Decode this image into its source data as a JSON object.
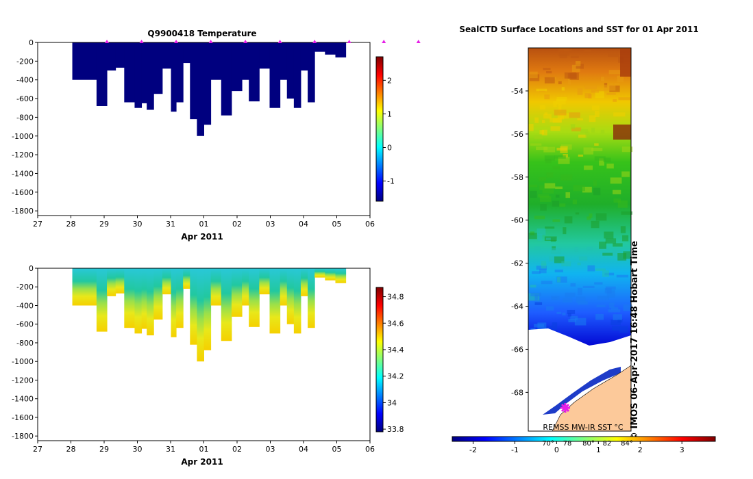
{
  "chart_data": [
    {
      "type": "heatmap",
      "title": "Q9900418  Temperature",
      "xlabel": "Apr 2011",
      "ylabel": "",
      "x_ticks": [
        "27",
        "28",
        "29",
        "30",
        "31",
        "01",
        "02",
        "03",
        "04",
        "05",
        "06"
      ],
      "y_ticks": [
        0,
        -200,
        -400,
        -600,
        -800,
        -1000,
        -1200,
        -1400,
        -1600,
        -1800
      ],
      "ylim": [
        -1850,
        0
      ],
      "colorbar": {
        "min": -1.6,
        "max": 2.7,
        "ticks": [
          2,
          1,
          0,
          -1
        ]
      },
      "profile_markers_x": [
        29,
        30,
        31,
        32,
        33,
        34,
        35,
        36,
        37,
        38
      ],
      "profiles": [
        {
          "x0": 28.0,
          "x1": 28.7,
          "depth": -400
        },
        {
          "x0": 28.7,
          "x1": 29.0,
          "depth": -680
        },
        {
          "x0": 29.0,
          "x1": 29.25,
          "depth": -300
        },
        {
          "x0": 29.25,
          "x1": 29.5,
          "depth": -270
        },
        {
          "x0": 29.5,
          "x1": 29.8,
          "depth": -640
        },
        {
          "x0": 29.8,
          "x1": 30.0,
          "depth": -700
        },
        {
          "x0": 30.0,
          "x1": 30.15,
          "depth": -650
        },
        {
          "x0": 30.15,
          "x1": 30.35,
          "depth": -720
        },
        {
          "x0": 30.35,
          "x1": 30.6,
          "depth": -550
        },
        {
          "x0": 30.6,
          "x1": 30.85,
          "depth": -280
        },
        {
          "x0": 30.85,
          "x1": 31.0,
          "depth": -740
        },
        {
          "x0": 31.0,
          "x1": 31.2,
          "depth": -640
        },
        {
          "x0": 31.2,
          "x1": 31.4,
          "depth": -220
        },
        {
          "x0": 31.4,
          "x1": 31.6,
          "depth": -820
        },
        {
          "x0": 31.6,
          "x1": 31.8,
          "depth": -1000
        },
        {
          "x0": 31.8,
          "x1": 32.0,
          "depth": -880
        },
        {
          "x0": 32.0,
          "x1": 32.3,
          "depth": -400
        },
        {
          "x0": 32.3,
          "x1": 32.6,
          "depth": -780
        },
        {
          "x0": 32.6,
          "x1": 32.9,
          "depth": -520
        },
        {
          "x0": 32.9,
          "x1": 33.1,
          "depth": -400
        },
        {
          "x0": 33.1,
          "x1": 33.4,
          "depth": -630
        },
        {
          "x0": 33.4,
          "x1": 33.7,
          "depth": -280
        },
        {
          "x0": 33.7,
          "x1": 34.0,
          "depth": -700
        },
        {
          "x0": 34.0,
          "x1": 34.2,
          "depth": -400
        },
        {
          "x0": 34.2,
          "x1": 34.4,
          "depth": -600
        },
        {
          "x0": 34.4,
          "x1": 34.6,
          "depth": -700
        },
        {
          "x0": 34.6,
          "x1": 34.8,
          "depth": -300
        },
        {
          "x0": 34.8,
          "x1": 35.0,
          "depth": -640
        },
        {
          "x0": 35.0,
          "x1": 35.3,
          "depth": -100
        },
        {
          "x0": 35.3,
          "x1": 35.6,
          "depth": -130
        },
        {
          "x0": 35.6,
          "x1": 35.9,
          "depth": -160
        }
      ]
    },
    {
      "type": "heatmap",
      "title": "",
      "xlabel": "Apr 2011",
      "ylabel": "",
      "x_ticks": [
        "27",
        "28",
        "29",
        "30",
        "31",
        "01",
        "02",
        "03",
        "04",
        "05",
        "06"
      ],
      "y_ticks": [
        0,
        -200,
        -400,
        -600,
        -800,
        -1000,
        -1200,
        -1400,
        -1600,
        -1800
      ],
      "ylim": [
        -1850,
        0
      ],
      "colorbar": {
        "min": 33.78,
        "max": 34.87,
        "ticks": [
          34.8,
          34.6,
          34.4,
          34.2,
          34,
          33.8
        ]
      }
    },
    {
      "type": "heatmap",
      "title": "SealCTD Surface Locations and SST for 01 Apr 2011",
      "xlabel": "",
      "ylabel": "",
      "y_ticks": [
        -54,
        -56,
        -58,
        -60,
        -62,
        -64,
        -66,
        -68
      ],
      "ylim": [
        -69.8,
        -52
      ],
      "colorbar": {
        "min": -2.5,
        "max": 3.8,
        "ticks": [
          -2,
          -1,
          0,
          1,
          2,
          3
        ],
        "label": "REMSS MW-IR SST °C"
      },
      "seal_position_lat": -68.9
    }
  ],
  "annotations": {
    "timestamp": "© IMOS 06-Apr-2017 16:48 Hobart Time",
    "sst_label": "REMSS MW-IR SST °C",
    "map_overlay_numbers": [
      "70°",
      "78",
      "80°",
      "82",
      "84°"
    ]
  },
  "colors": {
    "navy": "#00007f",
    "marker": "#e61ee6",
    "land": "#fcc99a",
    "jet": [
      "#00007f",
      "#0000ff",
      "#007fff",
      "#00ffff",
      "#7fff7f",
      "#ffff00",
      "#ff7f00",
      "#ff0000",
      "#7f0000"
    ]
  }
}
